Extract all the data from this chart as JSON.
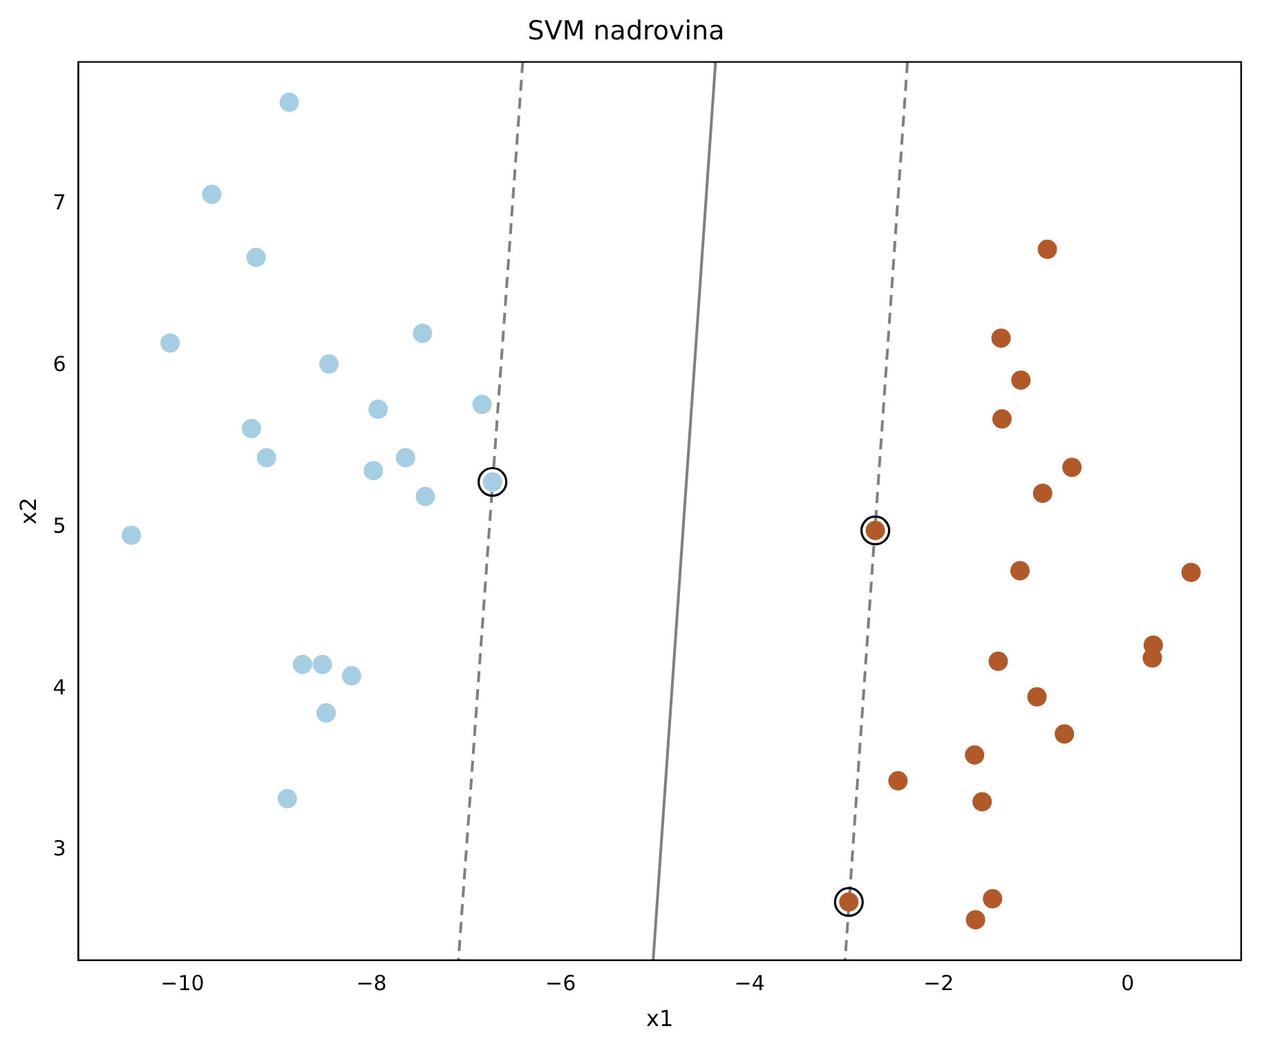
{
  "chart_data": {
    "type": "scatter",
    "title": "SVM nadrovina",
    "xlabel": "x1",
    "ylabel": "x2",
    "marker": "circle",
    "xlim": [
      -11.1,
      1.2
    ],
    "ylim": [
      2.32,
      7.88
    ],
    "xticks": [
      {
        "value": -10,
        "label": "−10"
      },
      {
        "value": -8,
        "label": "−8"
      },
      {
        "value": -6,
        "label": "−6"
      },
      {
        "value": -4,
        "label": "−4"
      },
      {
        "value": -2,
        "label": "−2"
      },
      0
    ],
    "yticks": [
      3,
      4,
      5,
      6,
      7
    ],
    "series": [
      {
        "type": "scatter",
        "color": "#a6cee3",
        "x": [
          -8.87,
          -9.69,
          -9.22,
          -10.13,
          -8.45,
          -7.46,
          -7.93,
          -6.83,
          -9.27,
          -9.11,
          -7.64,
          -7.98,
          -7.43,
          -6.72,
          -10.54,
          -8.73,
          -8.52,
          -8.21,
          -8.48,
          -8.89
        ],
        "values": [
          7.63,
          7.06,
          6.67,
          6.14,
          6.01,
          6.2,
          5.73,
          5.76,
          5.61,
          5.43,
          5.43,
          5.35,
          5.19,
          5.28,
          4.95,
          4.15,
          4.15,
          4.08,
          3.85,
          3.32
        ]
      },
      {
        "type": "scatter",
        "color": "#b15928",
        "x": [
          -0.85,
          -1.34,
          -1.13,
          -1.33,
          -0.59,
          -0.9,
          -2.67,
          -1.14,
          0.67,
          0.27,
          0.26,
          -1.37,
          -0.96,
          -0.67,
          -1.62,
          -2.43,
          -1.54,
          -1.43,
          -2.95,
          -1.61
        ],
        "values": [
          6.72,
          6.17,
          5.91,
          5.67,
          5.37,
          5.21,
          4.98,
          4.73,
          4.72,
          4.27,
          4.19,
          4.17,
          3.95,
          3.72,
          3.59,
          3.43,
          3.3,
          2.7,
          2.68,
          2.57
        ]
      },
      {
        "type": "scatter",
        "color": "#000000",
        "marker": "circle",
        "x": [
          -6.72,
          -2.67,
          -2.95
        ],
        "values": [
          5.28,
          4.98,
          2.68
        ]
      },
      {
        "type": "line",
        "marker": "none",
        "color": "#808080",
        "line_style": "solid",
        "x": [
          -4.36,
          -5.02
        ],
        "values": [
          7.88,
          2.32
        ]
      },
      {
        "type": "line",
        "marker": "none",
        "color": "#808080",
        "line_style": "dashed",
        "x": [
          -6.4,
          -7.08
        ],
        "values": [
          7.88,
          2.32
        ]
      },
      {
        "type": "line",
        "marker": "none",
        "color": "#808080",
        "line_style": "dashed",
        "x": [
          -2.33,
          -2.99
        ],
        "values": [
          7.88,
          2.32
        ]
      }
    ]
  }
}
